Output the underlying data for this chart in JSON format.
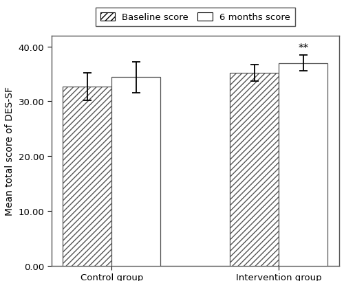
{
  "groups": [
    "Control group",
    "Intervention group"
  ],
  "baseline_values": [
    32.7,
    35.2
  ],
  "months6_values": [
    34.4,
    37.0
  ],
  "baseline_errors": [
    2.5,
    1.5
  ],
  "months6_errors": [
    2.8,
    1.4
  ],
  "ylim": [
    0,
    42
  ],
  "yticks": [
    0.0,
    10.0,
    20.0,
    30.0,
    40.0
  ],
  "ylabel": "Mean total score of DES-SF",
  "legend_labels": [
    "Baseline score",
    "6 months score"
  ],
  "hatch_pattern": "////",
  "bar_width": 0.38,
  "significance_label": "**",
  "bar_color_baseline": "#ffffff",
  "bar_color_6months": "#ffffff",
  "bar_edge_color": "#555555",
  "background_color": "#ffffff",
  "figsize": [
    5.0,
    4.1
  ],
  "dpi": 100,
  "group_centers": [
    0.65,
    1.95
  ]
}
